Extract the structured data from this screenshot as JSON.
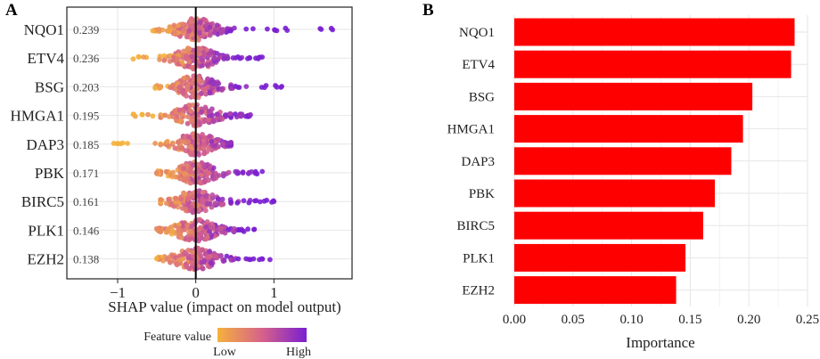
{
  "panel_a_label": "A",
  "panel_b_label": "B",
  "chart_data": [
    {
      "type": "scatter",
      "subtype": "shap-beeswarm",
      "features": [
        "NQO1",
        "ETV4",
        "BSG",
        "HMGA1",
        "DAP3",
        "PBK",
        "BIRC5",
        "PLK1",
        "EZH2"
      ],
      "mean_abs_shap": [
        "0.239",
        "0.236",
        "0.203",
        "0.195",
        "0.185",
        "0.171",
        "0.161",
        "0.146",
        "0.138"
      ],
      "shap_range": [
        [
          -0.55,
          1.75
        ],
        [
          -0.8,
          0.85
        ],
        [
          -0.52,
          1.1
        ],
        [
          -0.8,
          0.7
        ],
        [
          -1.05,
          0.45
        ],
        [
          -0.5,
          0.85
        ],
        [
          -0.45,
          1.0
        ],
        [
          -0.5,
          0.75
        ],
        [
          -0.5,
          0.95
        ]
      ],
      "xlabel": "SHAP value (impact on model output)",
      "xticks": [
        -1,
        0,
        1
      ],
      "xticks_label": [
        "−1",
        "0",
        "1"
      ],
      "xlim": [
        -1.65,
        2.0
      ],
      "legend_title": "Feature value",
      "legend_low": "Low",
      "legend_high": "High",
      "color_low": "#f5b13c",
      "color_mid": "#d6628a",
      "color_high": "#7a1fd1"
    },
    {
      "type": "bar",
      "orientation": "horizontal",
      "categories": [
        "NQO1",
        "ETV4",
        "BSG",
        "HMGA1",
        "DAP3",
        "PBK",
        "BIRC5",
        "PLK1",
        "EZH2"
      ],
      "values": [
        0.239,
        0.236,
        0.203,
        0.195,
        0.185,
        0.171,
        0.161,
        0.146,
        0.138
      ],
      "xlabel": "Importance",
      "xlim": [
        0,
        0.25
      ],
      "xticks": [
        0.0,
        0.05,
        0.1,
        0.15,
        0.2,
        0.25
      ],
      "xticks_label": [
        "0.00",
        "0.05",
        "0.10",
        "0.15",
        "0.20",
        "0.25"
      ],
      "bar_color": "#ff0000"
    }
  ]
}
